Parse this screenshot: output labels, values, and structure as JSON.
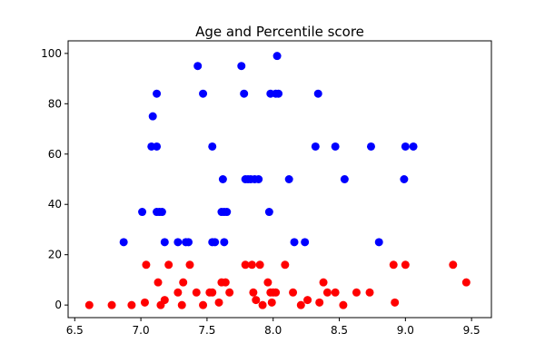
{
  "chart_data": {
    "type": "scatter",
    "title": "Age and Percentile score",
    "xlabel": "",
    "ylabel": "",
    "xlim": [
      6.45,
      9.65
    ],
    "ylim": [
      -5,
      105
    ],
    "xticks": [
      6.5,
      7.0,
      7.5,
      8.0,
      8.5,
      9.0,
      9.5
    ],
    "xtick_labels": [
      "6.5",
      "7.0",
      "7.5",
      "8.0",
      "8.5",
      "9.0",
      "9.5"
    ],
    "yticks": [
      0,
      20,
      40,
      60,
      80,
      100
    ],
    "ytick_labels": [
      "0",
      "20",
      "40",
      "60",
      "80",
      "100"
    ],
    "grid": false,
    "legend": "none",
    "series": [
      {
        "color": "#0000ff",
        "points": [
          [
            6.87,
            25
          ],
          [
            7.01,
            37
          ],
          [
            7.08,
            63
          ],
          [
            7.09,
            75
          ],
          [
            7.12,
            84
          ],
          [
            7.12,
            63
          ],
          [
            7.12,
            37
          ],
          [
            7.14,
            37
          ],
          [
            7.16,
            37
          ],
          [
            7.18,
            25
          ],
          [
            7.28,
            25
          ],
          [
            7.34,
            25
          ],
          [
            7.36,
            25
          ],
          [
            7.43,
            95
          ],
          [
            7.47,
            84
          ],
          [
            7.54,
            63
          ],
          [
            7.54,
            25
          ],
          [
            7.56,
            25
          ],
          [
            7.61,
            37
          ],
          [
            7.62,
            50
          ],
          [
            7.63,
            37
          ],
          [
            7.63,
            25
          ],
          [
            7.65,
            37
          ],
          [
            7.76,
            95
          ],
          [
            7.78,
            84
          ],
          [
            7.79,
            50
          ],
          [
            7.81,
            50
          ],
          [
            7.83,
            50
          ],
          [
            7.86,
            50
          ],
          [
            7.89,
            50
          ],
          [
            7.97,
            37
          ],
          [
            7.98,
            84
          ],
          [
            8.02,
            84
          ],
          [
            8.03,
            99
          ],
          [
            8.04,
            84
          ],
          [
            8.12,
            50
          ],
          [
            8.16,
            25
          ],
          [
            8.24,
            25
          ],
          [
            8.32,
            63
          ],
          [
            8.34,
            84
          ],
          [
            8.47,
            63
          ],
          [
            8.54,
            50
          ],
          [
            8.74,
            63
          ],
          [
            8.8,
            25
          ],
          [
            8.99,
            50
          ],
          [
            9.0,
            63
          ],
          [
            9.06,
            63
          ]
        ]
      },
      {
        "color": "#ff0000",
        "points": [
          [
            6.61,
            0
          ],
          [
            6.78,
            0
          ],
          [
            6.93,
            0
          ],
          [
            7.03,
            1
          ],
          [
            7.04,
            16
          ],
          [
            7.13,
            9
          ],
          [
            7.15,
            0
          ],
          [
            7.18,
            2
          ],
          [
            7.21,
            16
          ],
          [
            7.28,
            5
          ],
          [
            7.31,
            0
          ],
          [
            7.32,
            9
          ],
          [
            7.37,
            16
          ],
          [
            7.42,
            5
          ],
          [
            7.47,
            0
          ],
          [
            7.52,
            5
          ],
          [
            7.54,
            5
          ],
          [
            7.59,
            1
          ],
          [
            7.61,
            9
          ],
          [
            7.64,
            9
          ],
          [
            7.67,
            5
          ],
          [
            7.79,
            16
          ],
          [
            7.84,
            16
          ],
          [
            7.85,
            5
          ],
          [
            7.87,
            2
          ],
          [
            7.9,
            16
          ],
          [
            7.92,
            0
          ],
          [
            7.96,
            9
          ],
          [
            7.98,
            5
          ],
          [
            7.99,
            1
          ],
          [
            8.0,
            5
          ],
          [
            8.02,
            5
          ],
          [
            8.09,
            16
          ],
          [
            8.15,
            5
          ],
          [
            8.21,
            0
          ],
          [
            8.26,
            2
          ],
          [
            8.35,
            1
          ],
          [
            8.38,
            9
          ],
          [
            8.41,
            5
          ],
          [
            8.47,
            5
          ],
          [
            8.53,
            0
          ],
          [
            8.63,
            5
          ],
          [
            8.73,
            5
          ],
          [
            8.91,
            16
          ],
          [
            8.92,
            1
          ],
          [
            9.0,
            16
          ],
          [
            9.36,
            16
          ],
          [
            9.46,
            9
          ]
        ]
      }
    ]
  }
}
